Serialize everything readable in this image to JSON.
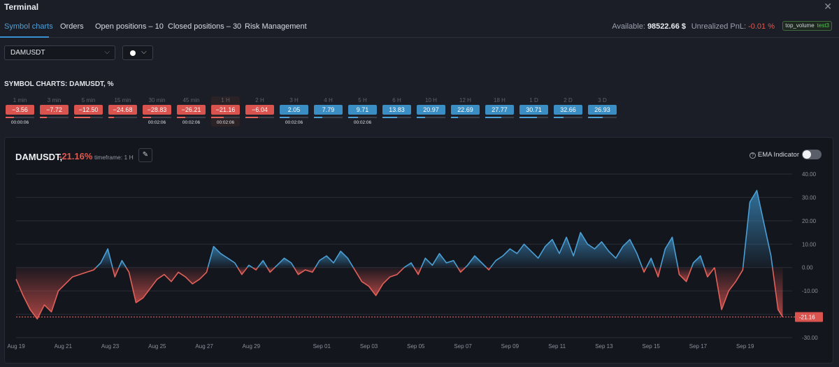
{
  "window": {
    "title": "Terminal"
  },
  "tabs": [
    {
      "label": "Symbol charts",
      "active": true
    },
    {
      "label": "Orders"
    },
    {
      "label": "Open positions – 10"
    },
    {
      "label": "Closed positions – 30"
    },
    {
      "label": "Risk Management"
    }
  ],
  "account": {
    "available_label": "Available:",
    "available_value": "98522.66 $",
    "pnl_label": "Unrealized PnL:",
    "pnl_value": "-0.01 %",
    "badge_text": "top_volume",
    "badge_tag": "test3"
  },
  "symbol_select": {
    "value": "DAMUSDT"
  },
  "section_title": "SYMBOL CHARTS: DAMUSDT, %",
  "timeframes": [
    {
      "label": "1 min",
      "value": "−3.56",
      "sign": "neg",
      "timer": "00:00:06",
      "fill": 0.3
    },
    {
      "label": "3 min",
      "value": "−7.72",
      "sign": "neg",
      "timer": "",
      "fill": 0.25
    },
    {
      "label": "5 min",
      "value": "−12.50",
      "sign": "neg",
      "timer": "",
      "fill": 0.55
    },
    {
      "label": "15 min",
      "value": "−24.68",
      "sign": "neg",
      "timer": "",
      "fill": 0.2
    },
    {
      "label": "30 min",
      "value": "−28.83",
      "sign": "neg",
      "timer": "00:02:06",
      "fill": 0.3
    },
    {
      "label": "45 min",
      "value": "−26.21",
      "sign": "neg",
      "timer": "00:02:06",
      "fill": 0.3
    },
    {
      "label": "1 H",
      "value": "−21.16",
      "sign": "neg",
      "timer": "00:02:06",
      "fill": 0.45,
      "highlight": true
    },
    {
      "label": "2 H",
      "value": "−6.04",
      "sign": "neg",
      "timer": "",
      "fill": 0.45
    },
    {
      "label": "3 H",
      "value": "2.05",
      "sign": "pos",
      "timer": "00:02:06",
      "fill": 0.35
    },
    {
      "label": "4 H",
      "value": "7.79",
      "sign": "pos",
      "timer": "",
      "fill": 0.3
    },
    {
      "label": "5 H",
      "value": "9.71",
      "sign": "pos",
      "timer": "00:02:06",
      "fill": 0.35
    },
    {
      "label": "6 H",
      "value": "13.83",
      "sign": "pos",
      "timer": "",
      "fill": 0.5
    },
    {
      "label": "10 H",
      "value": "20.97",
      "sign": "pos",
      "timer": "",
      "fill": 0.3
    },
    {
      "label": "12 H",
      "value": "22.69",
      "sign": "pos",
      "timer": "",
      "fill": 0.25
    },
    {
      "label": "18 H",
      "value": "27.77",
      "sign": "pos",
      "timer": "",
      "fill": 0.55
    },
    {
      "label": "1 D",
      "value": "30.71",
      "sign": "pos",
      "timer": "",
      "fill": 0.6
    },
    {
      "label": "2 D",
      "value": "32.66",
      "sign": "pos",
      "timer": "",
      "fill": 0.35
    },
    {
      "label": "3 D",
      "value": "26.93",
      "sign": "pos",
      "timer": "",
      "fill": 0.5
    }
  ],
  "chart_header": {
    "symbol": "DAMUSDT,",
    "change": "-21.16%",
    "timeframe": "timeframe: 1 H",
    "ema_label": "EMA Indicator"
  },
  "colors": {
    "positive": "#4a9fd4",
    "negative": "#e2605a"
  },
  "chart_data": {
    "type": "area",
    "title": "",
    "xlabel": "",
    "ylabel": "",
    "ylim": [
      -30,
      40
    ],
    "yticks": [
      "40.00",
      "30.00",
      "20.00",
      "10.00",
      "0.00",
      "-10.00",
      "-20.00",
      "-30.00"
    ],
    "ytick_values": [
      40,
      30,
      20,
      10,
      0,
      -10,
      -20,
      -30
    ],
    "xlim": [
      0,
      33
    ],
    "xticks": [
      {
        "label": "Aug 19",
        "day": 0
      },
      {
        "label": "Aug 21",
        "day": 2
      },
      {
        "label": "Aug 23",
        "day": 4
      },
      {
        "label": "Aug 25",
        "day": 6
      },
      {
        "label": "Aug 27",
        "day": 8
      },
      {
        "label": "Aug 29",
        "day": 10
      },
      {
        "label": "Sep 01",
        "day": 13
      },
      {
        "label": "Sep 03",
        "day": 15
      },
      {
        "label": "Sep 05",
        "day": 17
      },
      {
        "label": "Sep 07",
        "day": 19
      },
      {
        "label": "Sep 09",
        "day": 21
      },
      {
        "label": "Sep 11",
        "day": 23
      },
      {
        "label": "Sep 13",
        "day": 25
      },
      {
        "label": "Sep 15",
        "day": 27
      },
      {
        "label": "Sep 17",
        "day": 29
      },
      {
        "label": "Sep 19",
        "day": 31
      }
    ],
    "current_value": -21.16,
    "current_label": "-21.16",
    "series": [
      {
        "x": [
          0,
          0.3,
          0.6,
          0.9,
          1.2,
          1.5,
          1.8,
          2.1,
          2.4,
          2.7,
          3.0,
          3.3,
          3.6,
          3.9,
          4.2,
          4.5,
          4.8,
          5.1,
          5.4,
          5.7,
          6.0,
          6.3,
          6.6,
          6.9,
          7.2,
          7.5,
          7.8,
          8.1,
          8.4,
          8.7,
          9.0,
          9.3,
          9.6,
          9.9,
          10.2,
          10.5,
          10.8,
          11.1,
          11.4,
          11.7,
          12.0,
          12.3,
          12.6,
          12.9,
          13.2,
          13.5,
          13.8,
          14.1,
          14.4,
          14.7,
          15.0,
          15.3,
          15.6,
          15.9,
          16.2,
          16.5,
          16.8,
          17.1,
          17.4,
          17.7,
          18.0,
          18.3,
          18.6,
          18.9,
          19.2,
          19.5,
          19.8,
          20.1,
          20.4,
          20.7,
          21.0,
          21.3,
          21.6,
          21.9,
          22.2,
          22.5,
          22.8,
          23.1,
          23.4,
          23.7,
          24.0,
          24.3,
          24.6,
          24.9,
          25.2,
          25.5,
          25.8,
          26.1,
          26.4,
          26.7,
          27.0,
          27.3,
          27.6,
          27.9,
          28.2,
          28.5,
          28.8,
          29.1,
          29.4,
          29.7,
          30.0,
          30.3,
          30.6,
          30.9,
          31.2,
          31.5,
          31.8,
          32.1,
          32.4,
          32.6
        ],
        "y": [
          -5,
          -12,
          -18,
          -22,
          -16,
          -19,
          -10,
          -7,
          -4,
          -3,
          -2,
          -1,
          2,
          8,
          -4,
          3,
          -2,
          -15,
          -13,
          -9,
          -5,
          -3,
          -6,
          -2,
          -4,
          -7,
          -5,
          -2,
          9,
          6,
          4,
          2,
          -3,
          1,
          -1,
          3,
          -2,
          1,
          4,
          2,
          -3,
          -1,
          -2,
          3,
          5,
          2,
          7,
          4,
          -1,
          -6,
          -8,
          -12,
          -7,
          -4,
          -3,
          0,
          2,
          -3,
          4,
          1,
          6,
          2,
          3,
          -2,
          1,
          5,
          2,
          -1,
          3,
          5,
          8,
          6,
          10,
          7,
          4,
          9,
          12,
          6,
          13,
          5,
          15,
          10,
          8,
          11,
          7,
          4,
          9,
          12,
          6,
          -2,
          4,
          -4,
          8,
          13,
          -3,
          -6,
          2,
          5,
          -4,
          0,
          -18,
          -10,
          -6,
          -1,
          28,
          33,
          19,
          5,
          -18,
          -21.16
        ]
      }
    ]
  }
}
